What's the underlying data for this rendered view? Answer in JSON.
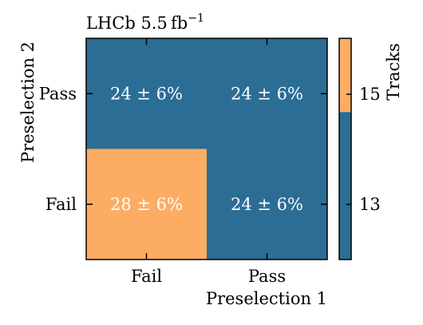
{
  "chart_data": {
    "type": "heatmap",
    "annotation": "LHCb 5.5 fb",
    "annotation_sup": "−1",
    "x_categories": [
      "Fail",
      "Pass"
    ],
    "y_categories": [
      "Fail",
      "Pass"
    ],
    "xlabel": "Preselection 1",
    "ylabel": "Preselection 2",
    "cells": [
      {
        "x": "Fail",
        "y": "Pass",
        "value": 24,
        "label": "24 ± 6%"
      },
      {
        "x": "Pass",
        "y": "Pass",
        "value": 24,
        "label": "24 ± 6%"
      },
      {
        "x": "Fail",
        "y": "Fail",
        "value": 28,
        "label": "28 ± 6%"
      },
      {
        "x": "Pass",
        "y": "Fail",
        "value": 24,
        "label": "24 ± 6%"
      }
    ],
    "colorbar": {
      "label": "Tracks",
      "ticks": [
        "13",
        "15"
      ],
      "bands": [
        {
          "color": "#2b6d94",
          "range": "low"
        },
        {
          "color": "#fdad63",
          "range": "high"
        }
      ]
    },
    "colors": {
      "low": "#2b6d94",
      "high": "#fdad63",
      "cell_text": "#ffffff",
      "axis": "#000000"
    }
  }
}
